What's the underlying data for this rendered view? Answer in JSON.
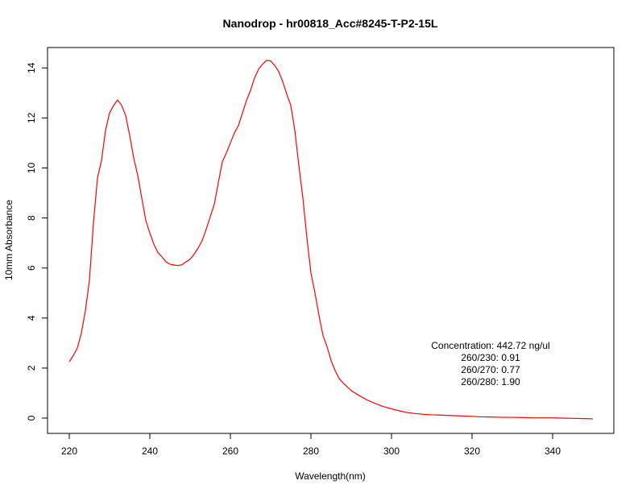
{
  "chart_data": {
    "type": "line",
    "title": "Nanodrop - hr00818_Acc#8245-T-P2-15L",
    "xlabel": "Wavelength(nm)",
    "ylabel": "10mm Absorbance",
    "xlim": [
      220,
      350
    ],
    "ylim": [
      0,
      14.3
    ],
    "x_ticks": [
      220,
      240,
      260,
      280,
      300,
      320,
      340
    ],
    "y_ticks": [
      0,
      2,
      4,
      6,
      8,
      10,
      12,
      14
    ],
    "grid": false,
    "legend": "none",
    "series": [
      {
        "color": "#ff0000",
        "x": [
          220,
          221,
          222,
          223,
          224,
          225,
          226,
          227,
          228,
          229,
          230,
          231,
          232,
          233,
          234,
          235,
          236,
          237,
          238,
          239,
          240,
          241,
          242,
          243,
          244,
          245,
          246,
          247,
          248,
          249,
          250,
          251,
          252,
          253,
          254,
          255,
          256,
          257,
          258,
          259,
          260,
          261,
          262,
          263,
          264,
          265,
          266,
          267,
          268,
          269,
          270,
          271,
          272,
          273,
          274,
          275,
          276,
          277,
          278,
          279,
          280,
          281,
          282,
          283,
          284,
          285,
          286,
          287,
          288,
          289,
          290,
          292,
          294,
          296,
          298,
          300,
          302,
          304,
          306,
          308,
          310,
          312,
          315,
          318,
          320,
          322,
          325,
          328,
          330,
          333,
          335,
          338,
          340,
          342,
          345,
          348,
          350
        ],
        "y": [
          2.25,
          2.5,
          2.8,
          3.4,
          4.3,
          5.5,
          7.8,
          9.6,
          10.3,
          11.5,
          12.2,
          12.5,
          12.72,
          12.5,
          12.1,
          11.3,
          10.4,
          9.7,
          8.8,
          7.9,
          7.4,
          6.95,
          6.62,
          6.45,
          6.25,
          6.15,
          6.12,
          6.1,
          6.13,
          6.25,
          6.35,
          6.55,
          6.8,
          7.1,
          7.55,
          8.05,
          8.55,
          9.4,
          10.25,
          10.6,
          11.0,
          11.4,
          11.7,
          12.2,
          12.7,
          13.1,
          13.6,
          13.95,
          14.15,
          14.3,
          14.28,
          14.1,
          13.85,
          13.45,
          12.95,
          12.5,
          11.5,
          10.1,
          8.8,
          7.2,
          5.8,
          5.0,
          4.1,
          3.3,
          2.85,
          2.3,
          1.9,
          1.58,
          1.4,
          1.25,
          1.1,
          0.9,
          0.72,
          0.58,
          0.46,
          0.37,
          0.29,
          0.22,
          0.18,
          0.15,
          0.13,
          0.12,
          0.1,
          0.08,
          0.07,
          0.05,
          0.04,
          0.03,
          0.03,
          0.02,
          0.01,
          0.01,
          0.01,
          0.0,
          -0.01,
          -0.02,
          -0.03
        ]
      }
    ],
    "annotations": [
      "Concentration: 442.72 ng/ul",
      "260/230: 0.91",
      "260/270: 0.77",
      "260/280: 1.90"
    ]
  }
}
